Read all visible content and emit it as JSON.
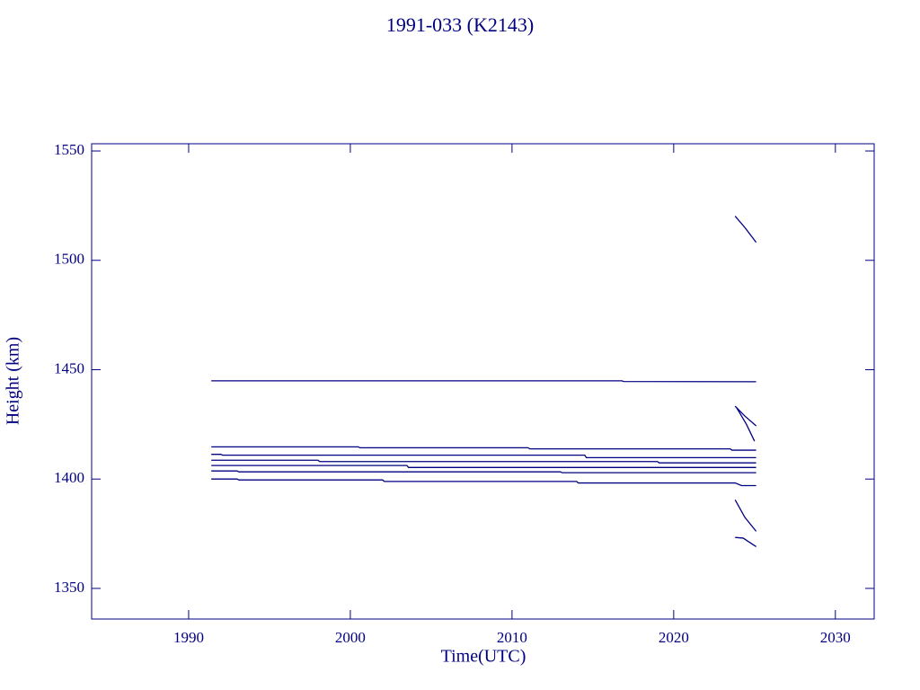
{
  "chart_data": {
    "type": "line",
    "title": "1991-033 (K2143)",
    "x_label": "Time(UTC)",
    "y_label": "Height (km)",
    "color": "#000080",
    "xlim": [
      1984,
      2032.4
    ],
    "ylim": [
      1336,
      1553.3
    ],
    "xticks": [
      1990,
      2000,
      2010,
      2020,
      2030
    ],
    "yticks": [
      1350,
      1400,
      1450,
      1500,
      1550
    ],
    "series": [
      {
        "x": [
          1991.4,
          2016.8,
          2016.9,
          2025.1
        ],
        "values": [
          1444.9,
          1444.9,
          1444.6,
          1444.5
        ]
      },
      {
        "x": [
          1991.4,
          2000.5,
          2000.6,
          2011.0,
          2011.1,
          2023.5,
          2023.6,
          2025.1
        ],
        "values": [
          1414.7,
          1414.7,
          1414.3,
          1414.3,
          1413.8,
          1413.8,
          1413.2,
          1413.2
        ]
      },
      {
        "x": [
          1991.4,
          1992.0,
          1992.1,
          2014.5,
          2014.6,
          2025.1
        ],
        "values": [
          1411.3,
          1411.3,
          1410.9,
          1410.9,
          1409.8,
          1409.8
        ]
      },
      {
        "x": [
          1991.4,
          1998.0,
          1998.1,
          2019.0,
          2019.1,
          2025.1
        ],
        "values": [
          1408.6,
          1408.6,
          1408.0,
          1408.0,
          1407.4,
          1407.4
        ]
      },
      {
        "x": [
          1991.4,
          2003.5,
          2003.6,
          2025.1
        ],
        "values": [
          1406.2,
          1406.2,
          1405.3,
          1405.3
        ]
      },
      {
        "x": [
          1991.4,
          1993.0,
          1993.1,
          2013.0,
          2013.1,
          2025.1
        ],
        "values": [
          1403.7,
          1403.7,
          1403.3,
          1403.3,
          1402.9,
          1402.9
        ]
      },
      {
        "x": [
          1991.4,
          1993.0,
          1993.1,
          2002.0,
          2002.1,
          2014.0,
          2014.1,
          2023.8,
          2024.2,
          2025.1
        ],
        "values": [
          1400.0,
          1400.0,
          1399.6,
          1399.6,
          1398.9,
          1398.9,
          1398.2,
          1398.2,
          1397.0,
          1397.0
        ]
      },
      {
        "x": [
          2023.8,
          2024.4,
          2025.1
        ],
        "values": [
          1520.2,
          1515.0,
          1508.2
        ]
      },
      {
        "x": [
          2023.8,
          2024.4,
          2025.1
        ],
        "values": [
          1433.3,
          1428.8,
          1424.3
        ]
      },
      {
        "x": [
          2023.9,
          2024.5,
          2025.0
        ],
        "values": [
          1432.5,
          1425.0,
          1417.3
        ]
      },
      {
        "x": [
          2023.8,
          2024.4,
          2025.1
        ],
        "values": [
          1390.5,
          1382.5,
          1376.1
        ]
      },
      {
        "x": [
          2023.8,
          2024.3,
          2024.6,
          2025.1
        ],
        "values": [
          1373.3,
          1373.0,
          1371.5,
          1369.1
        ]
      }
    ]
  }
}
